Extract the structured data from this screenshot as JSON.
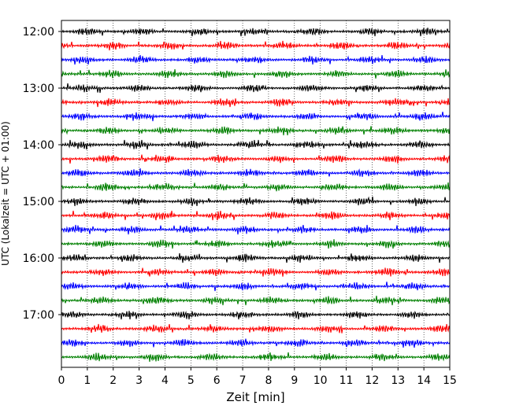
{
  "chart_data": {
    "type": "line",
    "xlabel": "Zeit  [min]",
    "ylabel": "UTC (Lokalzeit = UTC + 01:00)",
    "xlim": [
      0,
      15
    ],
    "x_ticks": [
      "0",
      "1",
      "2",
      "3",
      "4",
      "5",
      "6",
      "7",
      "8",
      "9",
      "10",
      "11",
      "12",
      "13",
      "14",
      "15"
    ],
    "y_tick_labels": [
      "12:00",
      "13:00",
      "14:00",
      "15:00",
      "16:00",
      "17:00"
    ],
    "trace_start_times": [
      "12:00",
      "12:15",
      "12:30",
      "12:45",
      "13:00",
      "13:15",
      "13:30",
      "13:45",
      "14:00",
      "14:15",
      "14:30",
      "14:45",
      "15:00",
      "15:15",
      "15:30",
      "15:45",
      "16:00",
      "16:15",
      "16:30",
      "16:45",
      "17:00",
      "17:15",
      "17:30",
      "17:45"
    ],
    "trace_colors": [
      "#000000",
      "#ff0000",
      "#0000ff",
      "#008000"
    ],
    "grid": "vertical dotted at each minute",
    "series_values_note_free": true
  }
}
